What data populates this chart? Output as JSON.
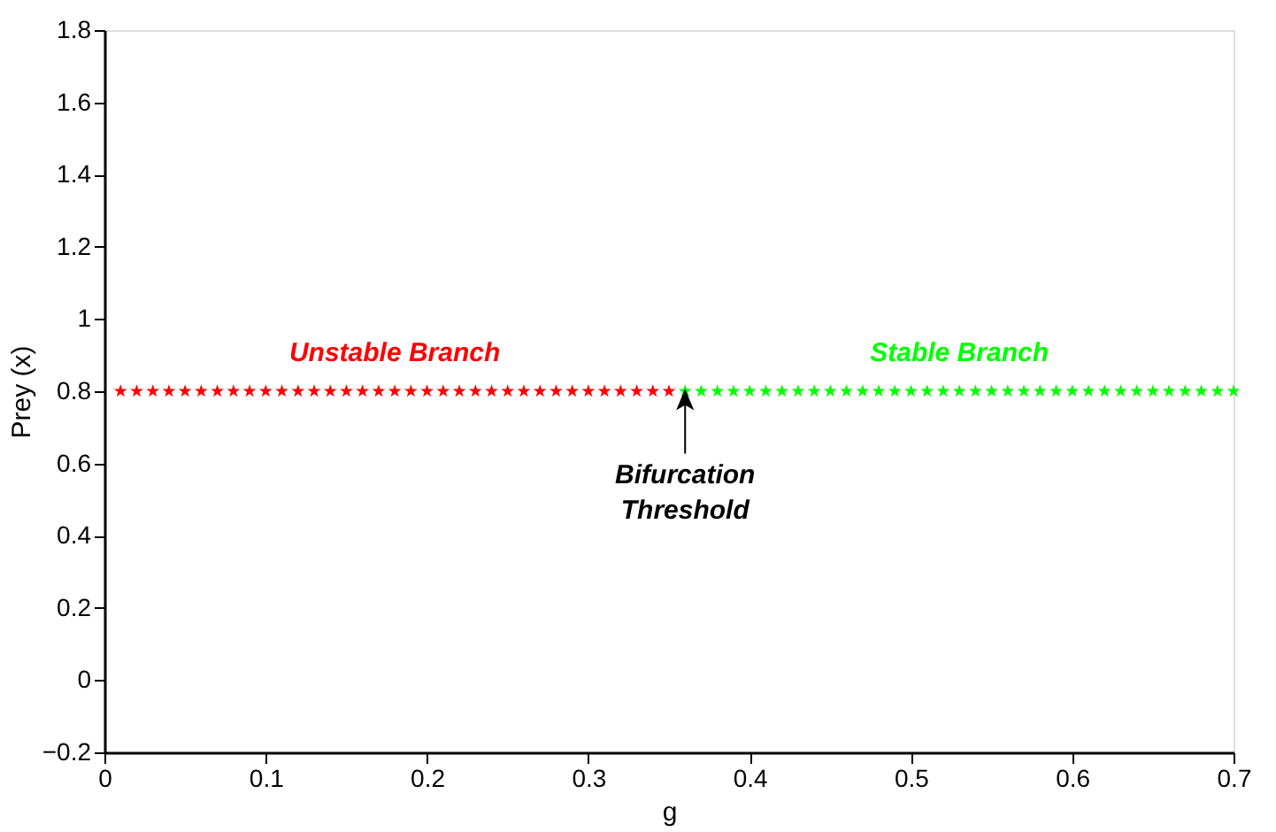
{
  "chart_data": {
    "type": "scatter",
    "xlabel": "g",
    "ylabel": "Prey (x)",
    "xlim": [
      0,
      0.7
    ],
    "xticks": [
      0,
      0.1,
      0.2,
      0.3,
      0.4,
      0.5,
      0.6,
      0.7
    ],
    "ylim": [
      -0.2,
      1.8
    ],
    "yticks": [
      -0.2,
      0,
      0.2,
      0.4,
      0.6,
      0.8,
      1,
      1.2,
      1.4,
      1.6,
      1.8
    ],
    "marker": "star",
    "grid": false,
    "series": [
      {
        "name": "Unstable Branch",
        "color": "#ff0000",
        "x": [
          0.01,
          0.02,
          0.03,
          0.04,
          0.05,
          0.06,
          0.07,
          0.08,
          0.09,
          0.1,
          0.11,
          0.12,
          0.13,
          0.14,
          0.15,
          0.16,
          0.17,
          0.18,
          0.19,
          0.2,
          0.21,
          0.22,
          0.23,
          0.24,
          0.25,
          0.26,
          0.27,
          0.28,
          0.29,
          0.3,
          0.31,
          0.32,
          0.33,
          0.34,
          0.35
        ],
        "values": [
          0.8,
          0.8,
          0.8,
          0.8,
          0.8,
          0.8,
          0.8,
          0.8,
          0.8,
          0.8,
          0.8,
          0.8,
          0.8,
          0.8,
          0.8,
          0.8,
          0.8,
          0.8,
          0.8,
          0.8,
          0.8,
          0.8,
          0.8,
          0.8,
          0.8,
          0.8,
          0.8,
          0.8,
          0.8,
          0.8,
          0.8,
          0.8,
          0.8,
          0.8,
          0.8
        ]
      },
      {
        "name": "Stable Branch",
        "color": "#00ff00",
        "x": [
          0.36,
          0.37,
          0.38,
          0.39,
          0.4,
          0.41,
          0.42,
          0.43,
          0.44,
          0.45,
          0.46,
          0.47,
          0.48,
          0.49,
          0.5,
          0.51,
          0.52,
          0.53,
          0.54,
          0.55,
          0.56,
          0.57,
          0.58,
          0.59,
          0.6,
          0.61,
          0.62,
          0.63,
          0.64,
          0.65,
          0.66,
          0.67,
          0.68,
          0.69,
          0.7
        ],
        "values": [
          0.8,
          0.8,
          0.8,
          0.8,
          0.8,
          0.8,
          0.8,
          0.8,
          0.8,
          0.8,
          0.8,
          0.8,
          0.8,
          0.8,
          0.8,
          0.8,
          0.8,
          0.8,
          0.8,
          0.8,
          0.8,
          0.8,
          0.8,
          0.8,
          0.8,
          0.8,
          0.8,
          0.8,
          0.8,
          0.8,
          0.8,
          0.8,
          0.8,
          0.8,
          0.8
        ]
      }
    ],
    "annotations": [
      {
        "text": "Bifurcation Threshold",
        "x": 0.36,
        "y": 0.8
      }
    ]
  }
}
